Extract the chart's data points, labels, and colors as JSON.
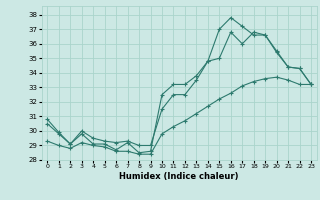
{
  "xlabel": "Humidex (Indice chaleur)",
  "bg_color": "#cce8e4",
  "grid_color": "#aad4cc",
  "line_color": "#2d7a6e",
  "xlim": [
    -0.5,
    23.5
  ],
  "ylim": [
    28,
    38.6
  ],
  "yticks": [
    28,
    29,
    30,
    31,
    32,
    33,
    34,
    35,
    36,
    37,
    38
  ],
  "xticks": [
    0,
    1,
    2,
    3,
    4,
    5,
    6,
    7,
    8,
    9,
    10,
    11,
    12,
    13,
    14,
    15,
    16,
    17,
    18,
    19,
    20,
    21,
    22,
    23
  ],
  "series": {
    "upper": [
      30.8,
      29.9,
      29.1,
      29.8,
      29.1,
      29.1,
      28.7,
      29.2,
      28.5,
      28.6,
      32.5,
      33.2,
      33.2,
      33.8,
      34.8,
      37.0,
      37.8,
      37.2,
      36.6,
      36.6,
      35.4,
      34.4,
      34.3,
      33.2
    ],
    "mid": [
      30.5,
      29.8,
      29.1,
      30.0,
      29.5,
      29.3,
      29.2,
      29.3,
      29.0,
      29.0,
      31.5,
      32.5,
      32.5,
      33.5,
      34.8,
      35.0,
      36.8,
      36.0,
      36.8,
      36.6,
      35.5,
      34.4,
      34.3,
      33.2
    ],
    "lower": [
      29.3,
      29.0,
      28.8,
      29.2,
      29.0,
      28.9,
      28.6,
      28.6,
      28.4,
      28.4,
      29.8,
      30.3,
      30.7,
      31.2,
      31.7,
      32.2,
      32.6,
      33.1,
      33.4,
      33.6,
      33.7,
      33.5,
      33.2,
      33.2
    ]
  }
}
